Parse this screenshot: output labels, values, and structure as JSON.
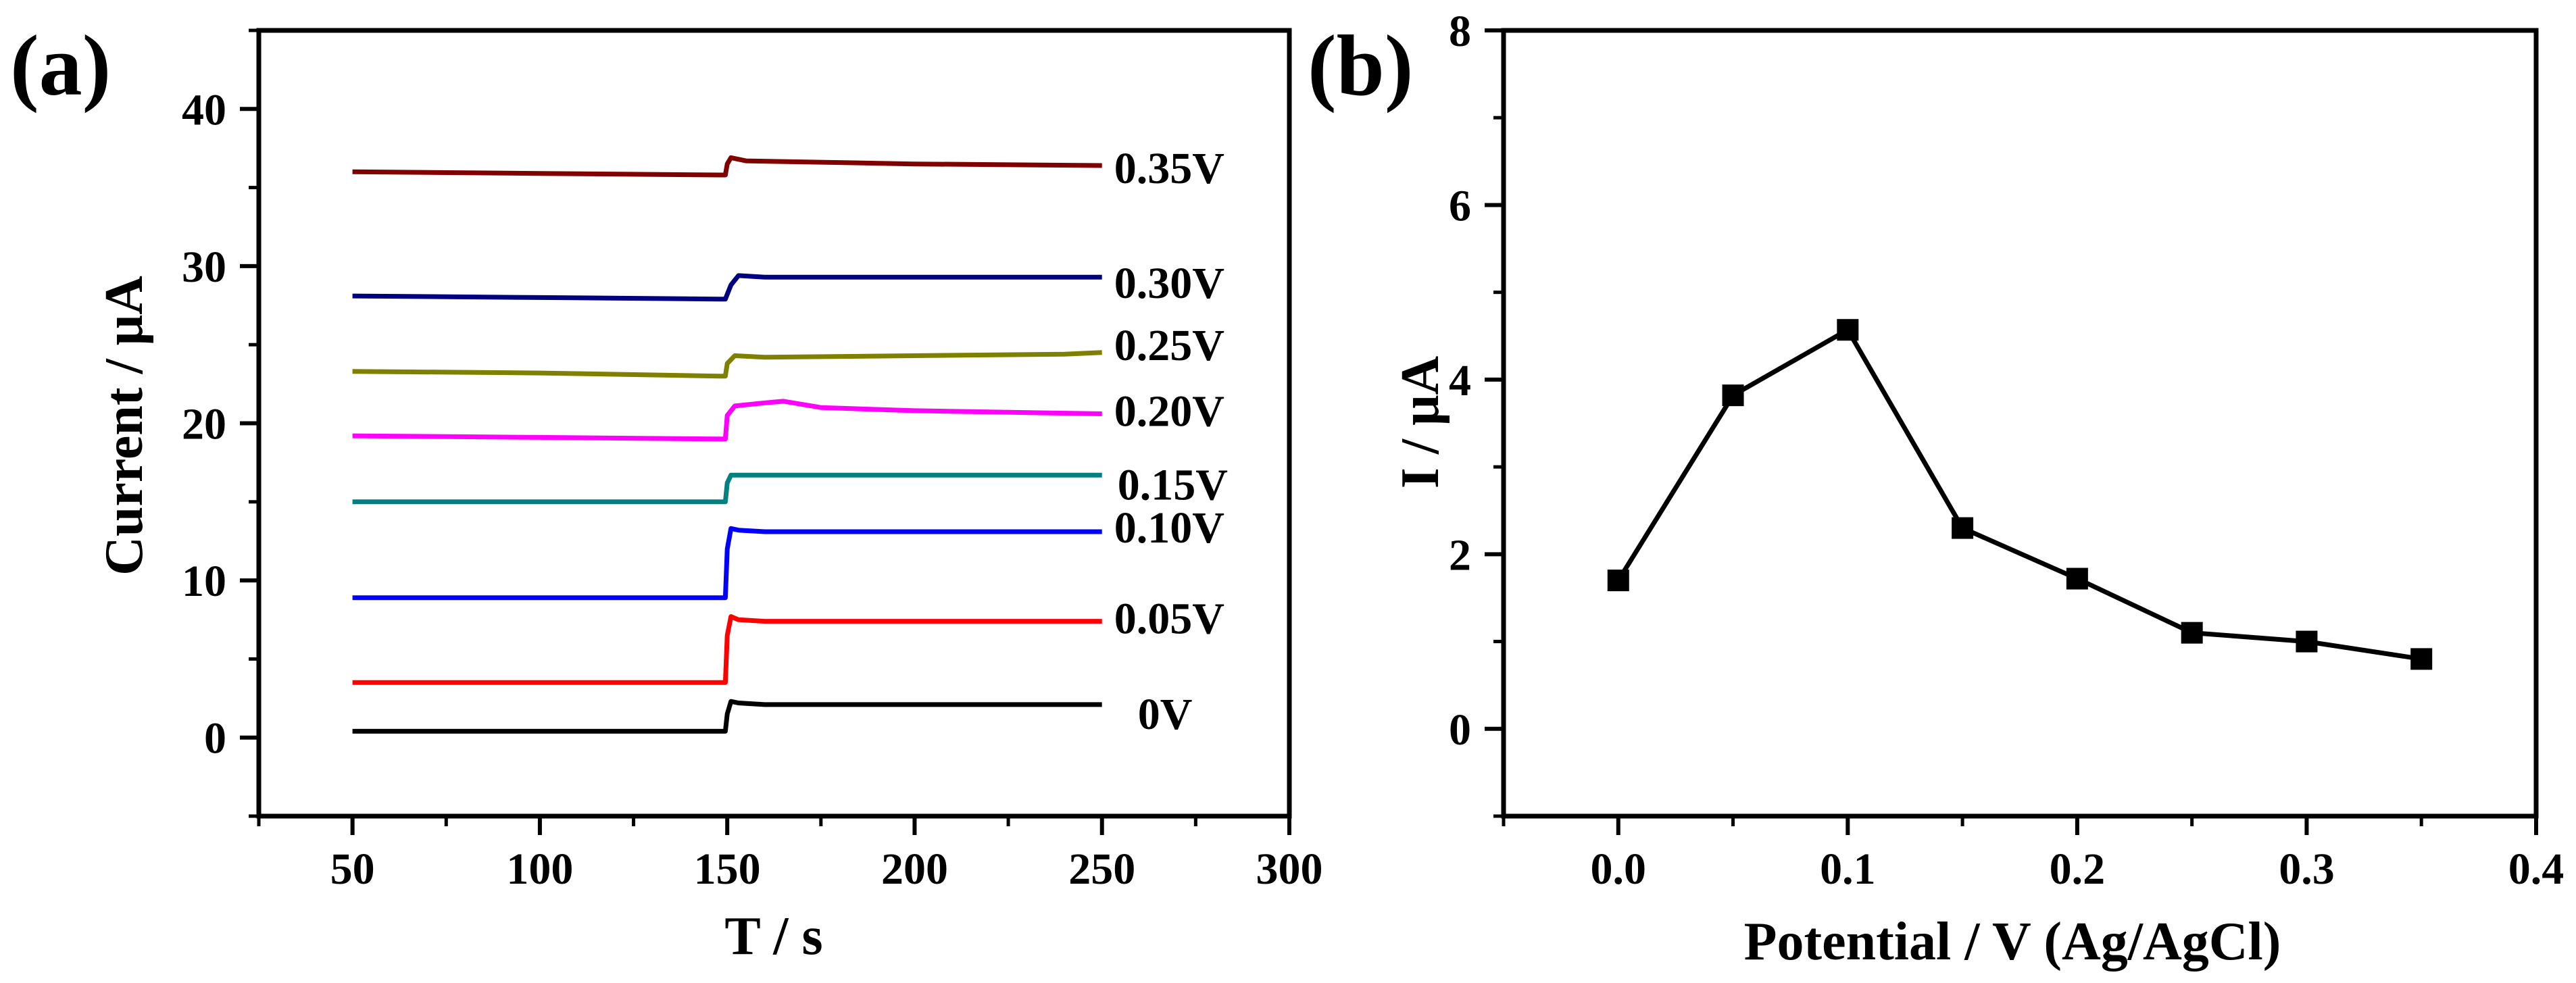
{
  "chart_data": [
    {
      "panel_label": "(a)",
      "type": "line",
      "title": "",
      "xlabel": "T / s",
      "ylabel": "Current / μA",
      "xlim": [
        25,
        300
      ],
      "ylim": [
        -5,
        45
      ],
      "xticks": [
        50,
        100,
        150,
        200,
        250,
        300
      ],
      "yticks": [
        0,
        10,
        20,
        30,
        40
      ],
      "xtick_labels": [
        "50",
        "100",
        "150",
        "200",
        "250",
        "300"
      ],
      "ytick_labels": [
        "0",
        "10",
        "20",
        "30",
        "40"
      ],
      "grid": false,
      "legend": "none",
      "series": [
        {
          "label": "0V",
          "color": "#000000",
          "points": [
            [
              50,
              0.4
            ],
            [
              148,
              0.4
            ],
            [
              149.5,
              0.4
            ],
            [
              150,
              1.5
            ],
            [
              151,
              2.3
            ],
            [
              153,
              2.2
            ],
            [
              160,
              2.1
            ],
            [
              200,
              2.1
            ],
            [
              250,
              2.1
            ]
          ]
        },
        {
          "label": "0.05V",
          "color": "#ff0000",
          "points": [
            [
              50,
              3.5
            ],
            [
              148,
              3.5
            ],
            [
              149.5,
              3.5
            ],
            [
              150,
              6.5
            ],
            [
              151,
              7.7
            ],
            [
              153,
              7.5
            ],
            [
              160,
              7.4
            ],
            [
              200,
              7.4
            ],
            [
              250,
              7.4
            ]
          ]
        },
        {
          "label": "0.10V",
          "color": "#0000ff",
          "points": [
            [
              50,
              8.9
            ],
            [
              148,
              8.9
            ],
            [
              149.5,
              8.9
            ],
            [
              150,
              12
            ],
            [
              151,
              13.3
            ],
            [
              153,
              13.2
            ],
            [
              160,
              13.1
            ],
            [
              200,
              13.1
            ],
            [
              250,
              13.1
            ]
          ]
        },
        {
          "label": "0.15V",
          "color": "#008080",
          "points": [
            [
              50,
              15.0
            ],
            [
              148,
              15.0
            ],
            [
              149.5,
              15.0
            ],
            [
              150,
              16.2
            ],
            [
              151,
              16.7
            ],
            [
              160,
              16.7
            ],
            [
              200,
              16.7
            ],
            [
              250,
              16.7
            ]
          ]
        },
        {
          "label": "0.20V",
          "color": "#ff00ff",
          "points": [
            [
              50,
              19.2
            ],
            [
              100,
              19.1
            ],
            [
              148,
              19.0
            ],
            [
              149.5,
              19.0
            ],
            [
              150,
              20.5
            ],
            [
              152,
              21.1
            ],
            [
              160,
              21.3
            ],
            [
              165,
              21.4
            ],
            [
              175,
              21.0
            ],
            [
              200,
              20.8
            ],
            [
              250,
              20.6
            ]
          ]
        },
        {
          "label": "0.25V",
          "color": "#808000",
          "points": [
            [
              50,
              23.3
            ],
            [
              100,
              23.2
            ],
            [
              148,
              23.0
            ],
            [
              149.5,
              23.0
            ],
            [
              150,
              23.8
            ],
            [
              152,
              24.3
            ],
            [
              160,
              24.2
            ],
            [
              200,
              24.3
            ],
            [
              240,
              24.4
            ],
            [
              250,
              24.5
            ]
          ]
        },
        {
          "label": "0.30V",
          "color": "#000080",
          "points": [
            [
              50,
              28.1
            ],
            [
              100,
              28.0
            ],
            [
              148,
              27.9
            ],
            [
              149.5,
              27.9
            ],
            [
              151,
              28.8
            ],
            [
              153,
              29.4
            ],
            [
              160,
              29.3
            ],
            [
              200,
              29.3
            ],
            [
              250,
              29.3
            ]
          ]
        },
        {
          "label": "0.35V",
          "color": "#800000",
          "points": [
            [
              50,
              36.0
            ],
            [
              100,
              35.9
            ],
            [
              148,
              35.8
            ],
            [
              149.5,
              35.8
            ],
            [
              150,
              36.5
            ],
            [
              151,
              36.9
            ],
            [
              155,
              36.7
            ],
            [
              200,
              36.5
            ],
            [
              250,
              36.4
            ]
          ]
        }
      ]
    },
    {
      "panel_label": "(b)",
      "type": "line",
      "title": "",
      "xlabel": "Potential / V (Ag/AgCl)",
      "ylabel": "I / μA",
      "xlim": [
        -0.05,
        0.4
      ],
      "ylim": [
        -1,
        8
      ],
      "xticks": [
        0.0,
        0.1,
        0.2,
        0.3,
        0.4
      ],
      "yticks": [
        0,
        2,
        4,
        6,
        8
      ],
      "xtick_labels": [
        "0.0",
        "0.1",
        "0.2",
        "0.3",
        "0.4"
      ],
      "ytick_labels": [
        "0",
        "2",
        "4",
        "6",
        "8"
      ],
      "grid": false,
      "legend": "none",
      "marker": "square",
      "series": [
        {
          "color": "#000000",
          "x": [
            0.0,
            0.05,
            0.1,
            0.15,
            0.2,
            0.25,
            0.3,
            0.35
          ],
          "y": [
            1.7,
            3.82,
            4.57,
            2.3,
            1.72,
            1.1,
            1.0,
            0.8
          ]
        }
      ]
    }
  ]
}
